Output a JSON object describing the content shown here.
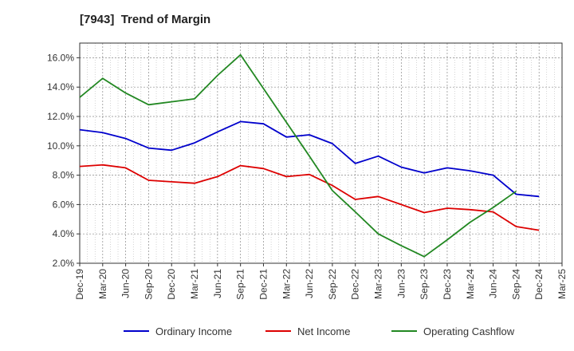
{
  "chart_data": {
    "type": "line",
    "title": "[7943]  Trend of Margin",
    "xlabel": "",
    "ylabel": "",
    "x": [
      "Dec-19",
      "Mar-20",
      "Jun-20",
      "Sep-20",
      "Dec-20",
      "Mar-21",
      "Jun-21",
      "Sep-21",
      "Dec-21",
      "Mar-22",
      "Jun-22",
      "Sep-22",
      "Dec-22",
      "Mar-23",
      "Jun-23",
      "Sep-23",
      "Dec-23",
      "Mar-24",
      "Jun-24",
      "Sep-24",
      "Dec-24",
      "Mar-25"
    ],
    "ylim": [
      2.0,
      17.0
    ],
    "yticks": [
      2.0,
      4.0,
      6.0,
      8.0,
      10.0,
      12.0,
      14.0,
      16.0
    ],
    "ytick_labels": [
      "2.0%",
      "4.0%",
      "6.0%",
      "8.0%",
      "10.0%",
      "12.0%",
      "14.0%",
      "16.0%"
    ],
    "grid": true,
    "legend_position": "bottom",
    "series": [
      {
        "name": "Ordinary Income",
        "color": "#0000cc",
        "values": [
          11.1,
          10.9,
          10.5,
          9.85,
          9.7,
          10.2,
          10.95,
          11.65,
          11.5,
          10.6,
          10.75,
          10.15,
          8.8,
          9.3,
          8.55,
          8.15,
          8.5,
          8.3,
          8.0,
          6.7,
          6.55,
          null
        ]
      },
      {
        "name": "Net Income",
        "color": "#dd0000",
        "values": [
          8.6,
          8.7,
          8.5,
          7.65,
          7.55,
          7.45,
          7.9,
          8.65,
          8.45,
          7.9,
          8.05,
          7.3,
          6.35,
          6.55,
          6.0,
          5.45,
          5.75,
          5.65,
          5.5,
          4.5,
          4.25,
          null
        ]
      },
      {
        "name": "Operating Cashflow",
        "color": "#228822",
        "values": [
          13.3,
          14.6,
          13.6,
          12.8,
          13.0,
          13.2,
          14.8,
          16.2,
          13.9,
          11.6,
          9.3,
          6.95,
          5.5,
          4.0,
          3.2,
          2.45,
          3.6,
          4.8,
          5.8,
          6.9,
          null,
          null
        ]
      }
    ]
  }
}
